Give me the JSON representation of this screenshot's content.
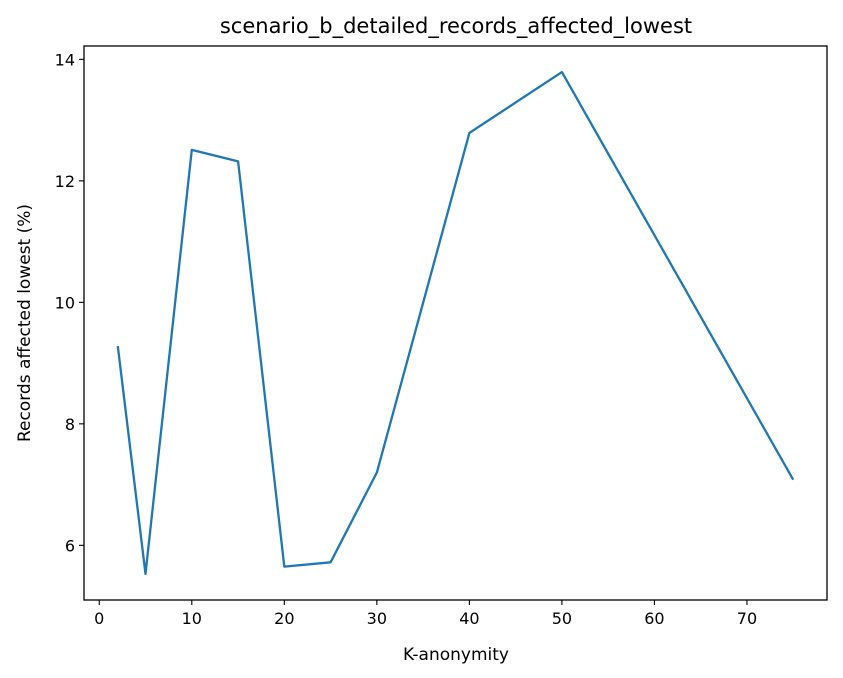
{
  "chart_data": {
    "type": "line",
    "title": "scenario_b_detailed_records_affected_lowest",
    "xlabel": "K-anonymity",
    "ylabel": "Records affected lowest (%)",
    "xlim": [
      -1.65,
      78.65
    ],
    "ylim": [
      5.1,
      14.22
    ],
    "xticks": [
      0,
      10,
      20,
      30,
      40,
      50,
      60,
      70
    ],
    "yticks": [
      6,
      8,
      10,
      12,
      14
    ],
    "grid": false,
    "line_color": "#1f77b4",
    "series": [
      {
        "x": [
          2,
          5,
          10,
          15,
          20,
          25,
          30,
          40,
          50,
          75
        ],
        "values": [
          9.28,
          5.53,
          12.51,
          12.32,
          5.65,
          5.72,
          7.2,
          12.79,
          13.79,
          7.08
        ]
      }
    ]
  }
}
